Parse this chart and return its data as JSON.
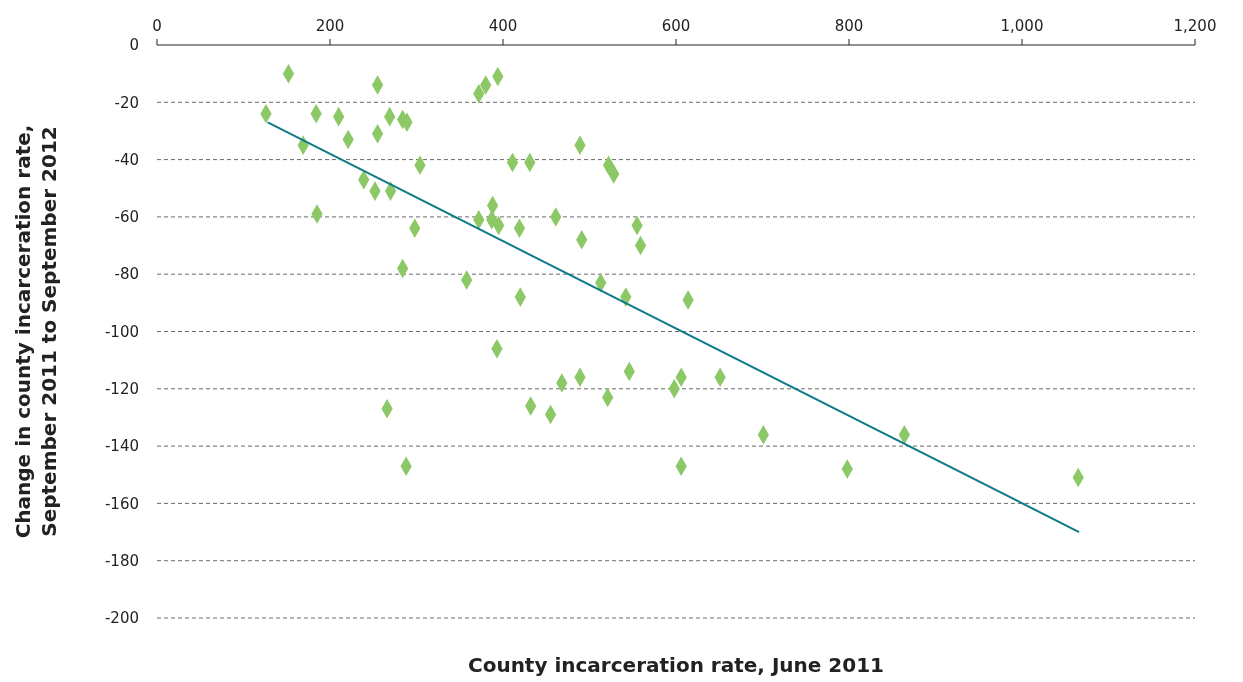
{
  "chart_data": {
    "type": "scatter",
    "xlabel": "County incarceration rate, June 2011",
    "ylabel": "Change in county incarceration rate,\nSeptember 2011 to September 2012",
    "xlim": [
      0,
      1200
    ],
    "xticks": [
      0,
      200,
      400,
      600,
      800,
      {
        "value": 1000,
        "label": "1,000"
      },
      {
        "value": 1200,
        "label": "1,200"
      }
    ],
    "ylim": [
      -200,
      0
    ],
    "yticks": [
      -200,
      -180,
      -160,
      -140,
      -120,
      -100,
      -80,
      -60,
      -40,
      -20,
      0
    ],
    "grid": "y",
    "series": [
      {
        "marker": "diamond",
        "color": "#8cc866",
        "x": [
          126,
          152,
          169,
          184,
          185,
          210,
          221,
          239,
          252,
          255,
          255,
          269,
          270,
          266,
          284,
          289,
          284,
          288,
          304,
          298,
          358,
          372,
          380,
          394,
          372,
          387,
          388,
          395,
          393,
          411,
          431,
          419,
          420,
          432,
          455,
          461,
          468,
          489,
          491,
          489,
          513,
          521,
          522,
          528,
          542,
          546,
          555,
          559,
          598,
          606,
          606,
          614,
          651,
          701,
          798,
          864,
          1065
        ],
        "values": [
          -24,
          -10,
          -35,
          -24,
          -59,
          -25,
          -33,
          -47,
          -51,
          -14,
          -31,
          -25,
          -51,
          -127,
          -26,
          -27,
          -78,
          -147,
          -42,
          -64,
          -82,
          -17,
          -14,
          -11,
          -61,
          -61,
          -56,
          -63,
          -106,
          -41,
          -41,
          -64,
          -88,
          -126,
          -129,
          -60,
          -118,
          -35,
          -68,
          -116,
          -83,
          -123,
          -42,
          -45,
          -88,
          -114,
          -63,
          -70,
          -120,
          -116,
          -147,
          -89,
          -116,
          -136,
          -148,
          -136,
          -151
        ]
      },
      {
        "type": "line",
        "color": "#0f7a8a",
        "x": [
          128,
          1066
        ],
        "values": [
          -27,
          -170
        ]
      }
    ]
  }
}
